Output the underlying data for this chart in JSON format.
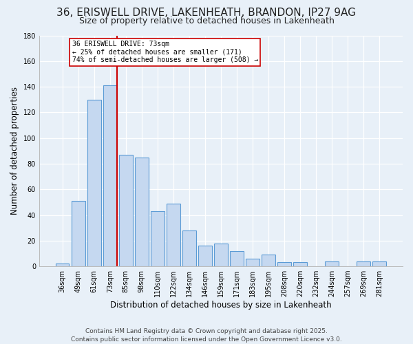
{
  "title": "36, ERISWELL DRIVE, LAKENHEATH, BRANDON, IP27 9AG",
  "subtitle": "Size of property relative to detached houses in Lakenheath",
  "xlabel": "Distribution of detached houses by size in Lakenheath",
  "ylabel": "Number of detached properties",
  "categories": [
    "36sqm",
    "49sqm",
    "61sqm",
    "73sqm",
    "85sqm",
    "98sqm",
    "110sqm",
    "122sqm",
    "134sqm",
    "146sqm",
    "159sqm",
    "171sqm",
    "183sqm",
    "195sqm",
    "208sqm",
    "220sqm",
    "232sqm",
    "244sqm",
    "257sqm",
    "269sqm",
    "281sqm"
  ],
  "values": [
    2,
    51,
    130,
    141,
    87,
    85,
    43,
    49,
    28,
    16,
    18,
    12,
    6,
    9,
    3,
    3,
    0,
    4,
    0,
    4,
    4
  ],
  "bar_color": "#c5d8f0",
  "bar_edge_color": "#5b9bd5",
  "vline_x_index": 3,
  "vline_color": "#cc0000",
  "annotation_line1": "36 ERISWELL DRIVE: 73sqm",
  "annotation_line2": "← 25% of detached houses are smaller (171)",
  "annotation_line3": "74% of semi-detached houses are larger (508) →",
  "annotation_box_color": "#ffffff",
  "annotation_box_edge_color": "#cc0000",
  "ylim": [
    0,
    180
  ],
  "yticks": [
    0,
    20,
    40,
    60,
    80,
    100,
    120,
    140,
    160,
    180
  ],
  "background_color": "#e8f0f8",
  "grid_color": "#ffffff",
  "footer_line1": "Contains HM Land Registry data © Crown copyright and database right 2025.",
  "footer_line2": "Contains public sector information licensed under the Open Government Licence v3.0.",
  "title_fontsize": 11,
  "subtitle_fontsize": 9,
  "footer_fontsize": 6.5,
  "bar_width": 0.85
}
